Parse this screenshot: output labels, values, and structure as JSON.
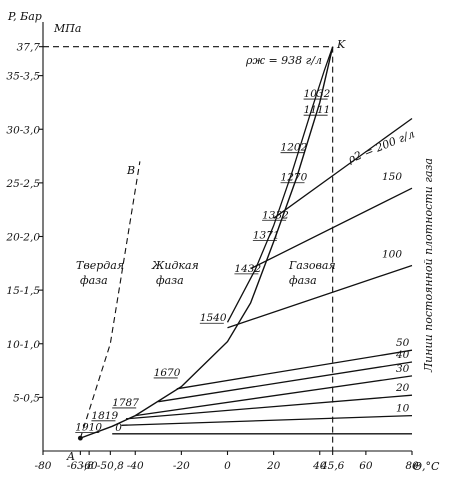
{
  "chart_data": {
    "type": "line",
    "xlabel": "Θ,°C",
    "ylabel_bar": "P, Бар",
    "ylabel_mpa": "МПа",
    "xlim": [
      -80,
      80
    ],
    "ylim": [
      0,
      40
    ],
    "x_ticks": [
      {
        "v": -80,
        "label": "-80"
      },
      {
        "v": -63.8,
        "label": "-63,8"
      },
      {
        "v": -60,
        "label": "-60"
      },
      {
        "v": -50.8,
        "label": "-50,8"
      },
      {
        "v": -40,
        "label": "-40"
      },
      {
        "v": -20,
        "label": "-20"
      },
      {
        "v": 0,
        "label": "0"
      },
      {
        "v": 20,
        "label": "20"
      },
      {
        "v": 40,
        "label": "40"
      },
      {
        "v": 45.6,
        "label": "45,6"
      },
      {
        "v": 60,
        "label": "60"
      },
      {
        "v": 80,
        "label": "80"
      }
    ],
    "y_ticks": [
      {
        "v": 5,
        "label": "5-0,5"
      },
      {
        "v": 10,
        "label": "10-1,0"
      },
      {
        "v": 15,
        "label": "15-1,5"
      },
      {
        "v": 20,
        "label": "20-2,0"
      },
      {
        "v": 25,
        "label": "25-2,5"
      },
      {
        "v": 30,
        "label": "30-3,0"
      },
      {
        "v": 35,
        "label": "35-3,5"
      },
      {
        "v": 37.7,
        "label": "37,7"
      }
    ],
    "saturation_curve": [
      {
        "x": -63.8,
        "y": 1.2
      },
      {
        "x": -50,
        "y": 2.3
      },
      {
        "x": -40,
        "y": 3.3
      },
      {
        "x": -20,
        "y": 6.0
      },
      {
        "x": 0,
        "y": 10.2
      },
      {
        "x": 10,
        "y": 13.8
      },
      {
        "x": 20,
        "y": 19.5
      },
      {
        "x": 30,
        "y": 25.5
      },
      {
        "x": 40,
        "y": 32.5
      },
      {
        "x": 45.6,
        "y": 37.7
      }
    ],
    "solid_boundary": [
      {
        "x": -63.8,
        "y": 1.2
      },
      {
        "x": -50.8,
        "y": 10
      },
      {
        "x": -38,
        "y": 27
      }
    ],
    "critical_dash_x": 45.6,
    "critical_dash_y": 37.7,
    "liquid_density_line": [
      {
        "x": 0,
        "y": 12.0
      },
      {
        "x": 12,
        "y": 16.9
      },
      {
        "x": 20,
        "y": 21.0
      },
      {
        "x": 28,
        "y": 26.0
      },
      {
        "x": 36,
        "y": 31.5
      },
      {
        "x": 42,
        "y": 35.5
      },
      {
        "x": 45.6,
        "y": 37.7
      }
    ],
    "gas_isochores": [
      {
        "name": "0",
        "points": [
          {
            "x": -50,
            "y": 1.6
          },
          {
            "x": 80,
            "y": 1.6
          }
        ]
      },
      {
        "name": "10",
        "points": [
          {
            "x": -46,
            "y": 2.4
          },
          {
            "x": 80,
            "y": 3.3
          }
        ]
      },
      {
        "name": "20",
        "points": [
          {
            "x": -44,
            "y": 3.0
          },
          {
            "x": 80,
            "y": 5.2
          }
        ]
      },
      {
        "name": "30",
        "points": [
          {
            "x": -40,
            "y": 3.3
          },
          {
            "x": 80,
            "y": 7.0
          }
        ]
      },
      {
        "name": "40",
        "points": [
          {
            "x": -30,
            "y": 4.6
          },
          {
            "x": 80,
            "y": 8.3
          }
        ]
      },
      {
        "name": "50",
        "points": [
          {
            "x": -22,
            "y": 5.8
          },
          {
            "x": 80,
            "y": 9.4
          }
        ]
      },
      {
        "name": "100",
        "points": [
          {
            "x": 0,
            "y": 11.5
          },
          {
            "x": 80,
            "y": 17.3
          }
        ]
      },
      {
        "name": "150",
        "points": [
          {
            "x": 10,
            "y": 17.0
          },
          {
            "x": 80,
            "y": 24.5
          }
        ]
      },
      {
        "name": "200 г/л",
        "points": [
          {
            "x": 20,
            "y": 21.7
          },
          {
            "x": 80,
            "y": 31.0
          }
        ]
      }
    ],
    "density_labels": [
      {
        "text": "1032",
        "x": 33,
        "y": 33.0
      },
      {
        "text": "1111",
        "x": 33,
        "y": 31.5
      },
      {
        "text": "1202",
        "x": 23,
        "y": 28.0
      },
      {
        "text": "1270",
        "x": 23,
        "y": 25.2
      },
      {
        "text": "1332",
        "x": 15,
        "y": 21.7
      },
      {
        "text": "1371",
        "x": 11,
        "y": 19.8
      },
      {
        "text": "1432",
        "x": 3,
        "y": 16.7
      },
      {
        "text": "1540",
        "x": -12,
        "y": 12.1
      },
      {
        "text": "1670",
        "x": -32,
        "y": 7.0
      },
      {
        "text": "1787",
        "x": -50,
        "y": 4.2
      },
      {
        "text": "1819",
        "x": -59,
        "y": 3.0
      },
      {
        "text": "1910",
        "x": -66,
        "y": 1.9
      }
    ],
    "annotations": {
      "K": "K",
      "A": "A",
      "B": "B",
      "rho_liq": "ρж = 938 г/л",
      "rho_gas": "ρ2 = 200 г/л",
      "solid_1": "Твердая",
      "solid_2": "фаза",
      "liquid_1": "Жидкая",
      "liquid_2": "фаза",
      "gas_1": "Газовая",
      "gas_2": "фаза",
      "side": "Линии постоянной плотности газа"
    }
  }
}
